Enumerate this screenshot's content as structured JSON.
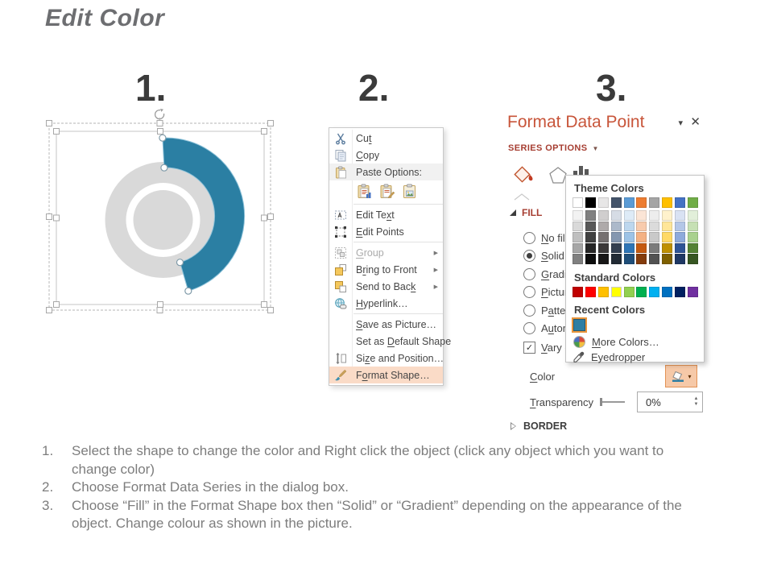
{
  "page": {
    "title": "Edit Color"
  },
  "steps": {
    "one": "1.",
    "two": "2.",
    "three": "3."
  },
  "chart": {
    "type": "donut",
    "donut_gray": "#D9D9D9",
    "arc_blue": "#2B7FA3",
    "description": "donut chart with gray ring and selected blue exploded arc segment"
  },
  "context_menu": {
    "items": [
      {
        "name": "cut",
        "icon": "cut",
        "label": "Cu[t]"
      },
      {
        "name": "copy",
        "icon": "copy",
        "label": "[C]opy"
      },
      {
        "name": "paste-options",
        "icon": "paste",
        "label": "Paste Options:",
        "highlight": "gray"
      },
      {
        "name": "paste-options-icons",
        "type": "paste-icons",
        "icons": [
          "paste-keep-source-icon",
          "paste-merge-formatting-icon",
          "paste-picture-icon"
        ]
      },
      {
        "type": "sep"
      },
      {
        "name": "edit-text",
        "icon": "edit-text",
        "label": "Edit Te[x]t"
      },
      {
        "name": "edit-points",
        "icon": "edit-points",
        "label": "[E]dit Points"
      },
      {
        "type": "sep"
      },
      {
        "name": "group",
        "icon": "group",
        "label": "[G]roup",
        "disabled": true,
        "submenu": true
      },
      {
        "name": "bring-to-front",
        "icon": "bring-front",
        "label": "B[r]ing to Front",
        "submenu": true
      },
      {
        "name": "send-to-back",
        "icon": "send-back",
        "label": "Send to Bac[k]",
        "submenu": true
      },
      {
        "name": "hyperlink",
        "icon": "hyperlink",
        "label": "[H]yperlink…"
      },
      {
        "type": "sep"
      },
      {
        "name": "save-as-picture",
        "label": "[S]ave as Picture…"
      },
      {
        "name": "set-as-default-shape",
        "label": "Set as [D]efault Shape"
      },
      {
        "name": "size-and-position",
        "icon": "size-pos",
        "label": "Si[z]e and Position…"
      },
      {
        "name": "format-shape",
        "icon": "format-shape",
        "label": "F[o]rmat Shape…",
        "highlight": "pink"
      }
    ]
  },
  "format_panel": {
    "title": "Format Data Point",
    "caret": "▾",
    "close": "✕",
    "series_options": "SERIES OPTIONS",
    "series_dd": "▼",
    "tabs": [
      "fill-line-bucket",
      "effects-pentagon",
      "series-options-chart"
    ],
    "fill": {
      "header": "FILL",
      "options": [
        {
          "name": "no-fill",
          "label": "[N]o fill",
          "selected": false
        },
        {
          "name": "solid-fill",
          "label": "[S]olid fill",
          "selected": true
        },
        {
          "name": "gradient-fill",
          "label": "[G]radient fill",
          "selected": false
        },
        {
          "name": "picture-fill",
          "label": "[P]icture or texture fill",
          "selected": false
        },
        {
          "name": "pattern-fill",
          "label": "P[a]ttern fill",
          "selected": false
        },
        {
          "name": "automatic",
          "label": "A[u]tomatic",
          "selected": false
        }
      ],
      "vary_checkbox": {
        "label": "[V]ary colors by point",
        "checked": true,
        "check": "✓"
      }
    },
    "color_label": "[C]olor",
    "transparency_label": "[T]ransparency",
    "transparency_value": "0%",
    "spin_up": "▲",
    "spin_down": "▼",
    "border_header": "BORDER"
  },
  "color_popup": {
    "theme_label": "Theme Colors",
    "standard_label": "Standard Colors",
    "recent_label": "Recent Colors",
    "more_colors": "[M]ore Colors…",
    "eyedropper": "Eyedropper",
    "theme_columns": [
      {
        "base": "#FFFFFF",
        "variants": [
          "#F2F2F2",
          "#D9D9D9",
          "#BFBFBF",
          "#A6A6A6",
          "#808080"
        ]
      },
      {
        "base": "#000000",
        "variants": [
          "#808080",
          "#595959",
          "#404040",
          "#262626",
          "#0D0D0D"
        ]
      },
      {
        "base": "#E7E6E6",
        "variants": [
          "#D0CECE",
          "#AEAAAA",
          "#767171",
          "#3B3838",
          "#181717"
        ]
      },
      {
        "base": "#44546A",
        "variants": [
          "#D6DCE5",
          "#ACB9CA",
          "#8497B0",
          "#333F50",
          "#222B35"
        ]
      },
      {
        "base": "#5B9BD5",
        "variants": [
          "#DEEBF7",
          "#BDD7EE",
          "#9DC3E6",
          "#2E75B6",
          "#1F4E79"
        ]
      },
      {
        "base": "#ED7D31",
        "variants": [
          "#FBE5D6",
          "#F8CBAD",
          "#F4B183",
          "#C55A11",
          "#843C0C"
        ]
      },
      {
        "base": "#A5A5A5",
        "variants": [
          "#EDEDED",
          "#DBDBDB",
          "#C9C9C9",
          "#7B7B7B",
          "#525252"
        ]
      },
      {
        "base": "#FFC000",
        "variants": [
          "#FFF2CC",
          "#FFE699",
          "#FFD966",
          "#BF9000",
          "#7F6000"
        ]
      },
      {
        "base": "#4472C4",
        "variants": [
          "#D9E2F3",
          "#B4C7E7",
          "#8EAADB",
          "#2F5496",
          "#1F3864"
        ]
      },
      {
        "base": "#70AD47",
        "variants": [
          "#E2EFDA",
          "#C6E0B4",
          "#A9D18E",
          "#548235",
          "#375623"
        ]
      }
    ],
    "standard_colors": [
      "#C00000",
      "#FF0000",
      "#FFC000",
      "#FFFF00",
      "#92D050",
      "#00B050",
      "#00B0F0",
      "#0070C0",
      "#002060",
      "#7030A0"
    ],
    "recent_colors": [
      "#2E7EA3"
    ],
    "recent_selected_border": "#E8953C"
  },
  "instructions": {
    "items": [
      {
        "num": "1.",
        "text": "Select the shape to change the color and Right click the object (click any object which you want to change color)"
      },
      {
        "num": "2.",
        "text": "Choose Format Data Series in the dialog box."
      },
      {
        "num": "3.",
        "text": "Choose “Fill” in the Format Shape box then “Solid” or “Gradient” depending on the appearance of the object. Change colour as shown in the picture."
      }
    ]
  }
}
